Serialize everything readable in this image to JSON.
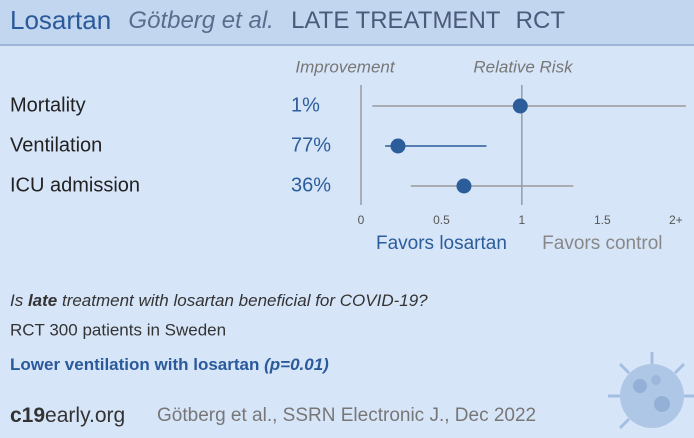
{
  "chart_data": {
    "type": "forest",
    "title": [
      "Losartan",
      "Götberg et al.",
      "LATE TREATMENT",
      "RCT"
    ],
    "column_headers": [
      "Improvement",
      "Relative Risk"
    ],
    "categories": [
      "Mortality",
      "Ventilation",
      "ICU admission"
    ],
    "values": [
      0.99,
      0.23,
      0.64
    ],
    "lower": [
      0.07,
      0.15,
      0.31
    ],
    "upper": [
      2.02,
      0.78,
      1.32
    ],
    "improvement": [
      1,
      77,
      36
    ],
    "improvement_labels": [
      "1%",
      "77%",
      "36%"
    ],
    "color": "#2b5d9b",
    "ci_colors": [
      "#9a9a9a",
      "#2b5d9b",
      "#9a9a9a"
    ],
    "xlim": [
      0,
      2.02
    ],
    "xticks": [
      0,
      0.5,
      1,
      1.5,
      {
        "value": 2,
        "label": "2+"
      }
    ],
    "axis_labels": [
      "Favors losartan",
      "Favors control"
    ],
    "question": [
      "Is ",
      "late",
      " treatment with losartan beneficial for COVID-19?"
    ],
    "study": "RCT 300 patients in Sweden",
    "conclusion": [
      "Lower ventilation with losartan ",
      "(p=0.01)"
    ],
    "footer": [
      "c19",
      "early.org",
      "Götberg et al., SSRN Electronic J., Dec 2022"
    ]
  }
}
